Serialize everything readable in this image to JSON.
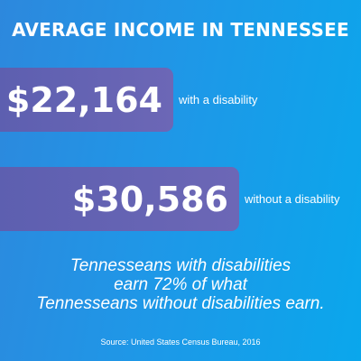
{
  "title": "AVERAGE INCOME IN TENNESSEE",
  "chart_data": {
    "type": "bar",
    "title": "AVERAGE INCOME IN TENNESSEE",
    "categories": [
      "with a disability",
      "without a disability"
    ],
    "values": [
      22164,
      30586
    ],
    "value_labels": [
      "$22,164",
      "$30,586"
    ],
    "xlabel": "",
    "ylabel": "",
    "grid": false
  },
  "statement": {
    "lines": [
      "Tennesseans with disabilities",
      "earn 72% of what",
      "Tennesseans without disabilities earn."
    ]
  },
  "source": "Source: United States Census Bureau, 2016",
  "colors": {
    "background_start": "#2d88dd",
    "background_end": "#0aa7ec",
    "bar": "#6465b3",
    "text": "#ffffff"
  }
}
